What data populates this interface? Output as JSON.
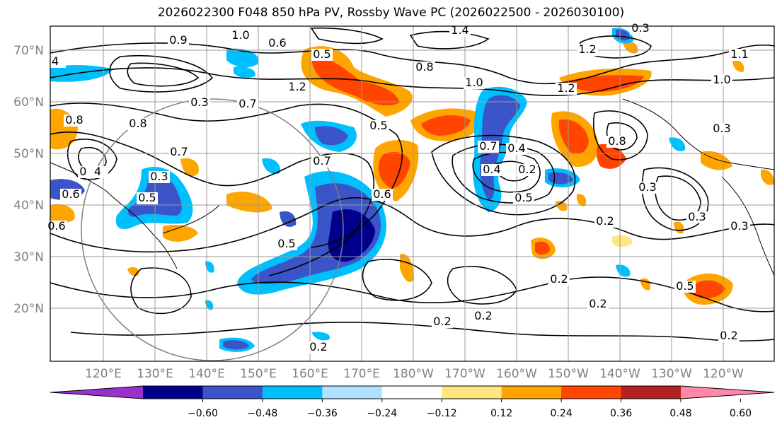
{
  "title": "2026022300 F048 850 hPa PV, Rossby Wave PC (2026022500 - 2026030100)",
  "lat_labels": [
    "70°N",
    "60°N",
    "50°N",
    "40°N",
    "30°N",
    "20°N"
  ],
  "lon_labels": [
    "120°E",
    "130°E",
    "140°E",
    "150°E",
    "160°E",
    "170°E",
    "180°W",
    "170°W",
    "160°W",
    "150°W",
    "140°W",
    "130°W",
    "120°W"
  ],
  "colorbar": {
    "colors": [
      "#9932cc",
      "#00008b",
      "#3b55c9",
      "#00bfff",
      "#b0e0ff",
      "#ffffff",
      "#ffe680",
      "#ffa500",
      "#ff4500",
      "#b22222",
      "#ff88aa"
    ],
    "tick_labels": [
      "−0.60",
      "−0.48",
      "−0.36",
      "−0.24",
      "−0.12",
      "0.12",
      "0.24",
      "0.36",
      "0.48",
      "0.60"
    ]
  },
  "contour_labels": [
    "0.9",
    "1.0",
    "0.6",
    "0.5",
    "1.4",
    "0.8",
    "1.0",
    "1.2",
    "1.1",
    "0.3",
    "0.8",
    "1.2",
    "1.0",
    "4",
    "0.3",
    "0.7",
    "0.5",
    "1.2",
    "0.8",
    "0.3",
    "0.7",
    "0.3",
    "0.7",
    "0.5",
    "0.4",
    "0.2",
    "0.6",
    "0.8",
    "4",
    "0.6",
    "0.6",
    "0.7",
    "0.4",
    "0.5",
    "0.3",
    "0.2",
    "0.5",
    "0.3",
    "0.2",
    "0.2",
    "0.2",
    "0.2",
    "0.5",
    "0.3",
    "0.2",
    "0.8",
    "0.2"
  ],
  "shading_levels": [
    "negative_strong",
    "negative",
    "negative_weak",
    "positive_weak",
    "positive",
    "positive_strong"
  ],
  "colors": {
    "contour": "#000000",
    "grid": "#999999",
    "circle": "#808080"
  }
}
